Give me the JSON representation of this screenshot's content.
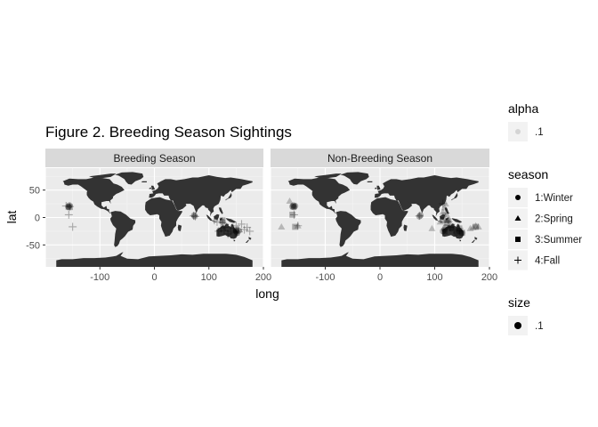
{
  "chart_data": {
    "type": "scatter",
    "title": "Figure 2. Breeding Season Sightings",
    "xlabel": "long",
    "ylabel": "lat",
    "xlim": [
      -200,
      200
    ],
    "ylim": [
      -90,
      90
    ],
    "x_ticks": [
      -100,
      0,
      100,
      200
    ],
    "x_tick_labels": [
      "-100",
      "0",
      "100",
      "200"
    ],
    "y_ticks": [
      50,
      0,
      -50
    ],
    "y_tick_labels": [
      "50",
      "0",
      "-50"
    ],
    "grid": true,
    "legend_position": "right",
    "background": "world map",
    "panels": [
      "Breeding Season",
      "Non-Breeding Season"
    ],
    "legends": [
      {
        "title": "alpha",
        "entries": [
          {
            "label": ".1",
            "shape": "circle",
            "color": "#d0d0d0"
          }
        ]
      },
      {
        "title": "season",
        "entries": [
          {
            "label": "1:Winter",
            "shape": "circle"
          },
          {
            "label": "2:Spring",
            "shape": "triangle"
          },
          {
            "label": "3:Summer",
            "shape": "square"
          },
          {
            "label": "4:Fall",
            "shape": "plus"
          }
        ]
      },
      {
        "title": "size",
        "entries": [
          {
            "label": ".1",
            "shape": "circle"
          }
        ]
      }
    ],
    "series": [
      {
        "panel": 0,
        "name": "1:Winter",
        "shape": "circle",
        "x": [
          -158,
          -156,
          -157,
          73,
          74,
          125,
          150,
          152,
          155
        ],
        "y": [
          20,
          22,
          19,
          4,
          2,
          -8,
          -25,
          -28,
          -24
        ]
      },
      {
        "panel": 0,
        "name": "3:Summer",
        "shape": "square",
        "x": [
          -155,
          125,
          150
        ],
        "y": [
          19,
          -5,
          -22
        ]
      },
      {
        "panel": 0,
        "name": "4:Fall",
        "shape": "plus",
        "x": [
          -162,
          -150,
          -157,
          -155,
          72,
          75,
          110,
          115,
          118,
          122,
          125,
          128,
          130,
          135,
          140,
          145,
          148,
          150,
          153,
          155,
          160,
          165,
          170,
          175
        ],
        "y": [
          21,
          -17,
          5,
          20,
          3,
          2,
          -5,
          -8,
          -25,
          -20,
          -10,
          -24,
          -18,
          -30,
          -25,
          -20,
          -28,
          -15,
          -23,
          -26,
          -12,
          -22,
          -18,
          -25
        ]
      },
      {
        "panel": 1,
        "name": "1:Winter",
        "shape": "circle",
        "x": [
          -160,
          -158,
          -157,
          -155,
          72,
          74,
          115,
          118,
          120,
          125,
          130,
          140,
          145,
          150
        ],
        "y": [
          20,
          22,
          19,
          21,
          2,
          4,
          -25,
          -22,
          -18,
          -5,
          -20,
          -28,
          -25,
          -28
        ]
      },
      {
        "panel": 1,
        "name": "2:Spring",
        "shape": "triangle",
        "x": [
          -180,
          -165,
          -150,
          95,
          110,
          115,
          118,
          120,
          122,
          125,
          130,
          165,
          170,
          175,
          180
        ],
        "y": [
          -17,
          30,
          -15,
          -20,
          -8,
          10,
          18,
          25,
          5,
          -5,
          -15,
          -20,
          -18,
          -15,
          -17
        ]
      },
      {
        "panel": 1,
        "name": "3:Summer",
        "shape": "square",
        "x": [
          -160,
          -158,
          -155,
          115,
          118,
          122,
          145,
          150,
          175
        ],
        "y": [
          5,
          20,
          -17,
          -5,
          -25,
          -10,
          -20,
          -28,
          -17
        ]
      },
      {
        "panel": 1,
        "name": "4:Fall",
        "shape": "plus",
        "x": [
          -157,
          -150,
          72,
          115,
          120,
          125,
          128,
          135,
          145
        ],
        "y": [
          5,
          -15,
          3,
          25,
          8,
          -8,
          -18,
          -22,
          -20
        ]
      }
    ]
  }
}
